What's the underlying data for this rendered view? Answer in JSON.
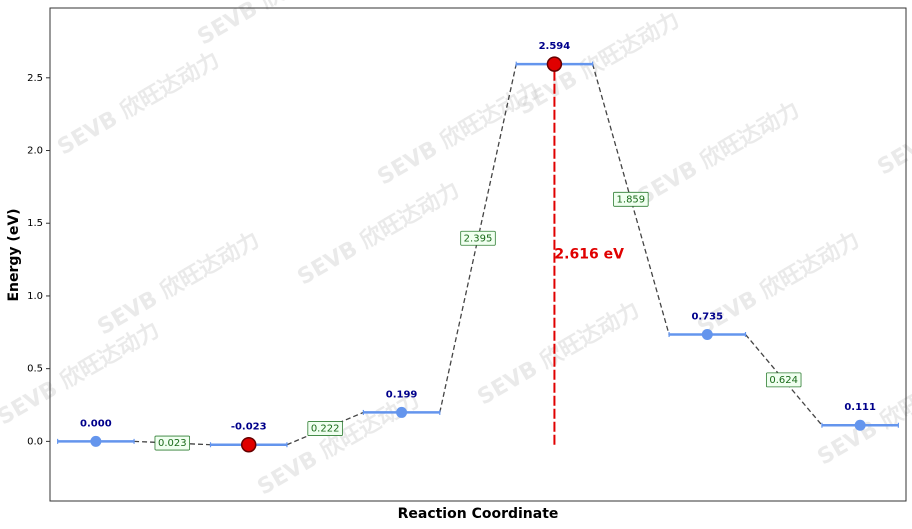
{
  "chart_data": {
    "type": "energy-profile",
    "xlabel": "Reaction Coordinate",
    "ylabel": "Energy (eV)",
    "x": [
      0,
      1,
      2,
      3,
      4,
      5
    ],
    "values": [
      0.0,
      -0.023,
      0.199,
      2.594,
      0.735,
      0.111
    ],
    "value_labels": [
      "0.000",
      "-0.023",
      "0.199",
      "2.594",
      "0.735",
      "0.111"
    ],
    "marker_colors": [
      "#6495ed",
      "#e00000",
      "#6495ed",
      "#e00000",
      "#6495ed",
      "#6495ed"
    ],
    "level_color": "#6495ed",
    "differences": [
      0.023,
      0.222,
      2.395,
      1.859,
      0.624
    ],
    "barrier": {
      "value": 2.616,
      "label": "2.616 eV"
    },
    "barrier_color": "#e00000",
    "xlim": [
      -0.3,
      5.3
    ],
    "ylim": [
      -0.41,
      2.98
    ],
    "yticks": [
      {
        "value": 0,
        "label": "0.0"
      },
      0.5,
      {
        "value": 1,
        "label": "1.0"
      },
      1.5,
      {
        "value": 2,
        "label": "2.0"
      },
      2.5
    ],
    "watermark": "SEVB 欣旺达动力"
  }
}
